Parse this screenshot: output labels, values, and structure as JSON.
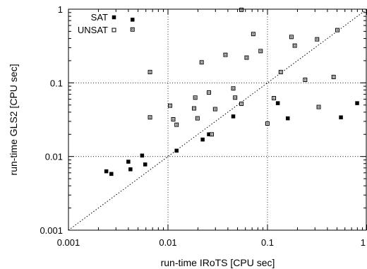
{
  "chart_data": {
    "type": "scatter",
    "xlabel": "run-time IRoTS [CPU sec]",
    "ylabel": "run-time GLS2 [CPU sec]",
    "x_scale": "log",
    "y_scale": "log",
    "xlim": [
      0.001,
      1.0
    ],
    "ylim": [
      0.001,
      1.0
    ],
    "x_ticks": [
      "0.001",
      "0.01",
      "0.1",
      "1"
    ],
    "y_ticks": [
      "0.001",
      "0.01",
      "0.1",
      "1"
    ],
    "grid": "dotted at decades",
    "reference_line": "y = x (dotted diagonal)",
    "legend_position": "top-left",
    "series": [
      {
        "name": "SAT",
        "marker": "filled-square",
        "color": "#000000",
        "points": [
          [
            0.0044,
            0.72
          ],
          [
            0.0024,
            0.0063
          ],
          [
            0.0027,
            0.0058
          ],
          [
            0.004,
            0.0085
          ],
          [
            0.0042,
            0.0067
          ],
          [
            0.0055,
            0.0103
          ],
          [
            0.0059,
            0.0078
          ],
          [
            0.0122,
            0.012
          ],
          [
            0.0223,
            0.017
          ],
          [
            0.0258,
            0.02
          ],
          [
            0.0453,
            0.035
          ],
          [
            0.127,
            0.053
          ],
          [
            0.16,
            0.033
          ],
          [
            0.547,
            0.034
          ],
          [
            0.796,
            0.053
          ]
        ]
      },
      {
        "name": "UNSAT",
        "marker": "open-square",
        "color": "#000000",
        "points": [
          [
            0.0044,
            0.53
          ],
          [
            0.0066,
            0.14
          ],
          [
            0.0066,
            0.034
          ],
          [
            0.0105,
            0.049
          ],
          [
            0.0113,
            0.032
          ],
          [
            0.0122,
            0.027
          ],
          [
            0.0183,
            0.045
          ],
          [
            0.0188,
            0.063
          ],
          [
            0.0198,
            0.033
          ],
          [
            0.0218,
            0.19
          ],
          [
            0.0258,
            0.074
          ],
          [
            0.0275,
            0.02
          ],
          [
            0.0298,
            0.044
          ],
          [
            0.0378,
            0.24
          ],
          [
            0.0453,
            0.084
          ],
          [
            0.0473,
            0.063
          ],
          [
            0.0547,
            0.052
          ],
          [
            0.0547,
            0.98
          ],
          [
            0.0617,
            0.22
          ],
          [
            0.072,
            0.46
          ],
          [
            0.0853,
            0.27
          ],
          [
            0.0998,
            0.028
          ],
          [
            0.116,
            0.062
          ],
          [
            0.136,
            0.14
          ],
          [
            0.174,
            0.42
          ],
          [
            0.188,
            0.32
          ],
          [
            0.239,
            0.11
          ],
          [
            0.315,
            0.39
          ],
          [
            0.327,
            0.047
          ],
          [
            0.462,
            0.12
          ],
          [
            0.504,
            0.52
          ]
        ]
      }
    ]
  }
}
